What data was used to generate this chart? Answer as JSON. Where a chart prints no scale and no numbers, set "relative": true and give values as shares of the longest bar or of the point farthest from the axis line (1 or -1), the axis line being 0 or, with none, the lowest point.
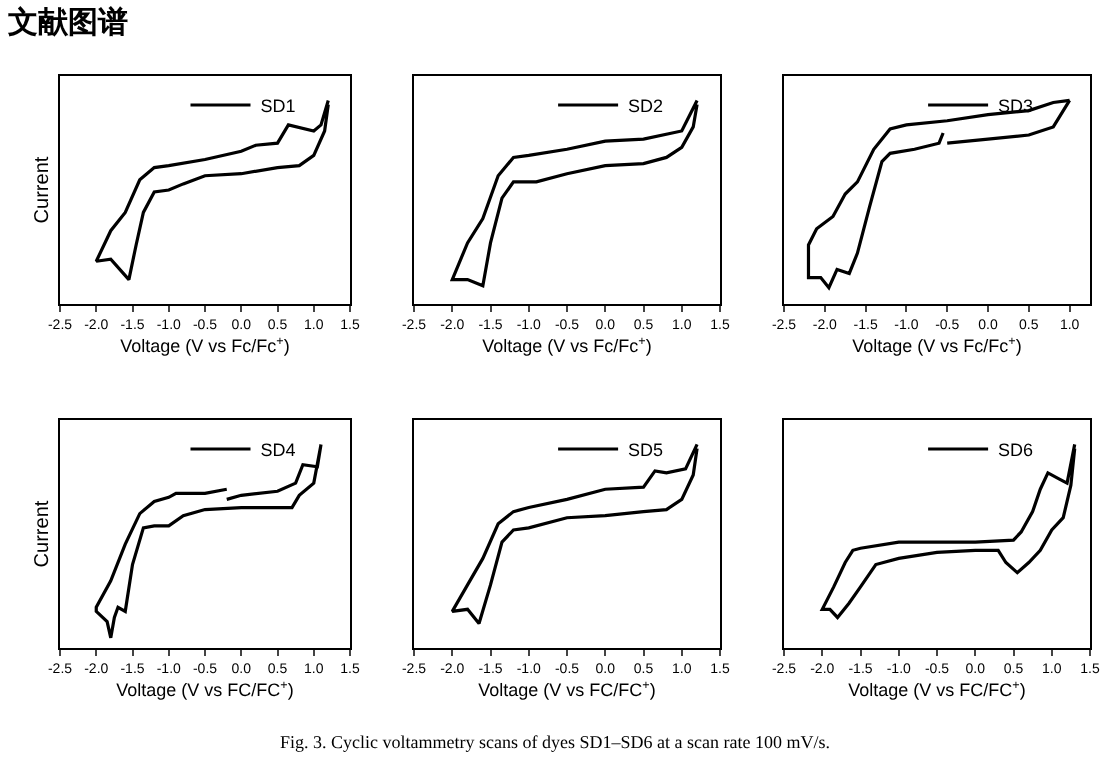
{
  "chart_data": [
    {
      "type": "line",
      "relative": true,
      "xlabel": "Voltage (V vs Fc/Fc$^{+}$)",
      "ylabel": "Current",
      "annotations": [
        "文献图谱"
      ],
      "legend": "top right",
      "grid": false,
      "marker": "none",
      "line_style": "solid",
      "xlim": [
        -2.5,
        1.5
      ],
      "xticks": [
        {
          "value": -2.5,
          "label": "-2.5"
        },
        {
          "value": -2,
          "label": "-2.0"
        },
        {
          "value": -1.5,
          "label": "-1.5"
        },
        {
          "value": -1,
          "label": "-1.0"
        },
        {
          "value": -0.5,
          "label": "-0.5"
        },
        {
          "value": 0,
          "label": "0.0"
        },
        {
          "value": 0.5,
          "label": "0.5"
        },
        {
          "value": 1,
          "label": "1.0"
        },
        {
          "value": 1.5,
          "label": "1.5"
        }
      ],
      "series": [
        {
          "name": "SD1",
          "color": "#000000",
          "x": [
            1.2,
            1.1,
            1.0,
            0.65,
            0.5,
            0.2,
            0,
            -0.5,
            -1.0,
            -1.2,
            -1.4,
            -1.6,
            -1.8,
            -2.0,
            -1.8,
            -1.55,
            -1.45,
            -1.35,
            -1.2,
            -1.0,
            -0.8,
            -0.5,
            0,
            0.5,
            0.8,
            1.0,
            1.15,
            1.2
          ],
          "values": [
            1,
            0.88,
            0.85,
            0.88,
            0.79,
            0.78,
            0.75,
            0.71,
            0.68,
            0.67,
            0.61,
            0.45,
            0.36,
            0.21,
            0.22,
            0.12,
            0.29,
            0.45,
            0.55,
            0.56,
            0.59,
            0.63,
            0.64,
            0.67,
            0.68,
            0.73,
            0.85,
            0.98
          ]
        }
      ]
    },
    {
      "type": "line",
      "relative": true,
      "xlabel": "Voltage (V vs Fc/Fc$^{+}$)",
      "legend": "top right",
      "grid": false,
      "marker": "none",
      "line_style": "solid",
      "xlim": [
        -2.5,
        1.5
      ],
      "xticks": [
        {
          "value": -2.5,
          "label": "-2.5"
        },
        {
          "value": -2,
          "label": "-2.0"
        },
        {
          "value": -1.5,
          "label": "-1.5"
        },
        {
          "value": -1,
          "label": "-1.0"
        },
        {
          "value": -0.5,
          "label": "-0.5"
        },
        {
          "value": 0,
          "label": "0.0"
        },
        {
          "value": 0.5,
          "label": "0.5"
        },
        {
          "value": 1,
          "label": "1.0"
        },
        {
          "value": 1.5,
          "label": "1.5"
        }
      ],
      "series": [
        {
          "name": "SD2",
          "color": "#000000",
          "x": [
            1.2,
            1.0,
            0.5,
            0,
            -0.5,
            -1.0,
            -1.2,
            -1.4,
            -1.6,
            -1.8,
            -2.0,
            -1.8,
            -1.6,
            -1.5,
            -1.35,
            -1.2,
            -0.9,
            -0.5,
            0,
            0.5,
            0.8,
            1.0,
            1.15,
            1.2
          ],
          "values": [
            1,
            0.85,
            0.81,
            0.8,
            0.76,
            0.73,
            0.72,
            0.63,
            0.42,
            0.3,
            0.12,
            0.12,
            0.09,
            0.3,
            0.52,
            0.6,
            0.6,
            0.64,
            0.68,
            0.69,
            0.72,
            0.77,
            0.87,
            0.98
          ]
        }
      ]
    },
    {
      "type": "line",
      "relative": true,
      "xlabel": "Voltage (V vs Fc/Fc$^{+}$)",
      "legend": "top right",
      "grid": false,
      "marker": "none",
      "line_style": "solid",
      "xlim": [
        -2.5,
        1.25
      ],
      "xticks": [
        {
          "value": -2.5,
          "label": "-2.5"
        },
        {
          "value": -2,
          "label": "-2.0"
        },
        {
          "value": -1.5,
          "label": "-1.5"
        },
        {
          "value": -1,
          "label": "-1.0"
        },
        {
          "value": -0.5,
          "label": "-0.5"
        },
        {
          "value": 0,
          "label": "0.0"
        },
        {
          "value": 0.5,
          "label": "0.5"
        },
        {
          "value": 1,
          "label": "1.0"
        }
      ],
      "series": [
        {
          "name": "SD3",
          "color": "#000000",
          "x": [
            1.0,
            0.8,
            0.5,
            0,
            -0.5,
            -1.0,
            -1.2,
            -1.4,
            -1.6,
            -1.75,
            -1.9,
            -2.1,
            -2.2,
            -2.2,
            -2.05,
            -1.95,
            -1.85,
            -1.7,
            -1.6,
            -1.45,
            -1.3,
            -1.2,
            -0.9,
            -0.6,
            -0.55,
            -0.52,
            -0.5,
            0,
            0.5,
            0.8,
            1.0
          ],
          "values": [
            1,
            0.99,
            0.95,
            0.93,
            0.9,
            0.88,
            0.86,
            0.76,
            0.6,
            0.54,
            0.43,
            0.37,
            0.29,
            0.13,
            0.13,
            0.08,
            0.17,
            0.15,
            0.25,
            0.48,
            0.7,
            0.74,
            0.76,
            0.79,
            0.84,
            null,
            0.79,
            0.81,
            0.83,
            0.87,
            1
          ]
        }
      ]
    },
    {
      "type": "line",
      "relative": true,
      "xlabel": "Voltage (V vs FC/FC$^{+}$)",
      "ylabel": "Current",
      "legend": "top right",
      "grid": false,
      "marker": "none",
      "line_style": "solid",
      "xlim": [
        -2.5,
        1.5
      ],
      "xticks": [
        {
          "value": -2.5,
          "label": "-2.5"
        },
        {
          "value": -2,
          "label": "-2.0"
        },
        {
          "value": -1.5,
          "label": "-1.5"
        },
        {
          "value": -1,
          "label": "-1.0"
        },
        {
          "value": -0.5,
          "label": "-0.5"
        },
        {
          "value": 0,
          "label": "0.0"
        },
        {
          "value": 0.5,
          "label": "0.5"
        },
        {
          "value": 1,
          "label": "1.0"
        },
        {
          "value": 1.5,
          "label": "1.5"
        }
      ],
      "series": [
        {
          "name": "SD4",
          "color": "#000000",
          "x": [
            -0.2,
            -0.5,
            -0.9,
            -1.0,
            -1.2,
            -1.4,
            -1.6,
            -1.8,
            -2.0,
            -2.0,
            -1.85,
            -1.8,
            -1.75,
            -1.7,
            -1.6,
            -1.5,
            -1.35,
            -1.2,
            -1.0,
            -0.8,
            -0.5,
            0,
            0.5,
            0.7,
            0.8,
            1.0,
            1.1,
            1.05,
            0.85,
            0.75,
            0.5,
            0,
            -0.2
          ],
          "values": [
            0.78,
            0.76,
            0.76,
            0.74,
            0.72,
            0.66,
            0.51,
            0.33,
            0.2,
            0.18,
            0.13,
            0.05,
            0.15,
            0.2,
            0.18,
            0.41,
            0.59,
            0.6,
            0.6,
            0.65,
            0.68,
            0.69,
            0.69,
            0.69,
            0.75,
            0.81,
            1,
            0.89,
            0.9,
            0.81,
            0.77,
            0.75,
            0.73
          ]
        }
      ]
    },
    {
      "type": "line",
      "relative": true,
      "xlabel": "Voltage (V vs FC/FC$^{+}$)",
      "legend": "top right",
      "grid": false,
      "marker": "none",
      "line_style": "solid",
      "xlim": [
        -2.5,
        1.5
      ],
      "xticks": [
        {
          "value": -2.5,
          "label": "-2.5"
        },
        {
          "value": -2,
          "label": "-2.0"
        },
        {
          "value": -1.5,
          "label": "-1.5"
        },
        {
          "value": -1,
          "label": "-1.0"
        },
        {
          "value": -0.5,
          "label": "-0.5"
        },
        {
          "value": 0,
          "label": "0.0"
        },
        {
          "value": 0.5,
          "label": "0.5"
        },
        {
          "value": 1,
          "label": "1.0"
        },
        {
          "value": 1.5,
          "label": "1.5"
        }
      ],
      "series": [
        {
          "name": "SD5",
          "color": "#000000",
          "x": [
            1.2,
            1.05,
            0.8,
            0.65,
            0.5,
            0,
            -0.5,
            -1.0,
            -1.2,
            -1.4,
            -1.6,
            -1.8,
            -2.0,
            -1.8,
            -1.65,
            -1.5,
            -1.35,
            -1.2,
            -1.0,
            -0.5,
            0,
            0.5,
            0.8,
            1.0,
            1.15,
            1.2
          ],
          "values": [
            1,
            0.88,
            0.86,
            0.87,
            0.79,
            0.78,
            0.73,
            0.69,
            0.67,
            0.61,
            0.44,
            0.31,
            0.18,
            0.19,
            0.12,
            0.31,
            0.52,
            0.58,
            0.59,
            0.64,
            0.65,
            0.67,
            0.68,
            0.73,
            0.85,
            0.98
          ]
        }
      ]
    },
    {
      "type": "line",
      "relative": true,
      "xlabel": "Voltage (V vs FC/FC$^{+}$)",
      "annotations": [
        "Fig. 3. Cyclic voltammetry scans of dyes SD1–SD6 at a scan rate 100 mV/s."
      ],
      "legend": "top right",
      "grid": false,
      "marker": "none",
      "line_style": "solid",
      "xlim": [
        -2.5,
        1.5
      ],
      "xticks": [
        {
          "value": -2.5,
          "label": "-2.5"
        },
        {
          "value": -2,
          "label": "-2.0"
        },
        {
          "value": -1.5,
          "label": "-1.5"
        },
        {
          "value": -1,
          "label": "-1.0"
        },
        {
          "value": -0.5,
          "label": "-0.5"
        },
        {
          "value": 0,
          "label": "0.0"
        },
        {
          "value": 0.5,
          "label": "0.5"
        },
        {
          "value": 1,
          "label": "1.0"
        },
        {
          "value": 1.5,
          "label": "1.5"
        }
      ],
      "series": [
        {
          "name": "SD6",
          "color": "#000000",
          "x": [
            1.3,
            1.2,
            1.1,
            0.95,
            0.85,
            0.75,
            0.6,
            0.5,
            0,
            -0.5,
            -1.0,
            -1.5,
            -1.6,
            -1.7,
            -1.85,
            -2.0,
            -1.9,
            -1.8,
            -1.65,
            -1.5,
            -1.3,
            -1.0,
            -0.5,
            0,
            0.3,
            0.4,
            0.55,
            0.7,
            0.85,
            1.0,
            1.15,
            1.25,
            1.3
          ],
          "values": [
            1,
            0.81,
            0.83,
            0.86,
            0.78,
            0.67,
            0.57,
            0.53,
            0.52,
            0.52,
            0.52,
            0.49,
            0.48,
            0.42,
            0.3,
            0.19,
            0.19,
            0.15,
            0.22,
            0.3,
            0.41,
            0.44,
            0.47,
            0.48,
            0.48,
            0.42,
            0.37,
            0.42,
            0.48,
            0.58,
            0.64,
            0.8,
            0.98
          ]
        }
      ]
    }
  ]
}
